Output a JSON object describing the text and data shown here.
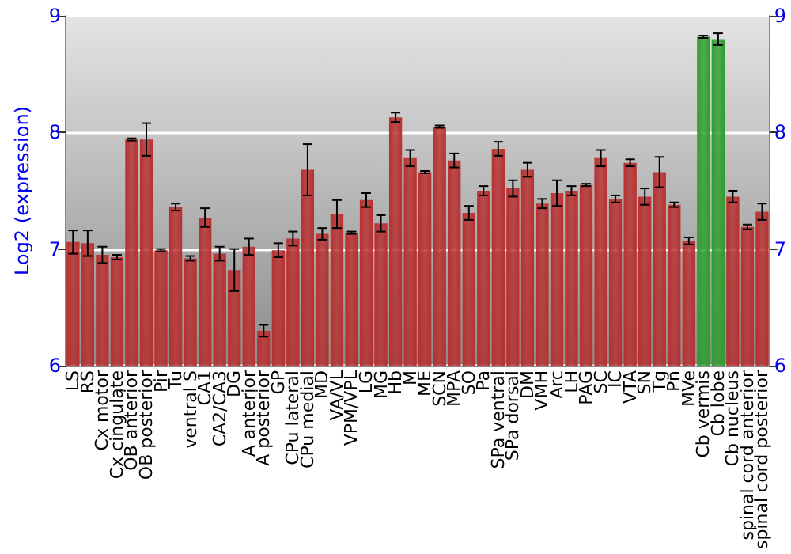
{
  "chart_data": {
    "type": "bar",
    "ylabel": "Log2 (expression)",
    "categories": [
      "LS",
      "RS",
      "Cx motor",
      "Cx cingulate",
      "OB anterior",
      "OB posterior",
      "Pir",
      "Tu",
      "ventral S",
      "CA1",
      "CA2/CA3",
      "DG",
      "A anterior",
      "A posterior",
      "GP",
      "CPu lateral",
      "CPu medial",
      "MD",
      "VA/VL",
      "VPM/VPL",
      "LG",
      "MG",
      "Hb",
      "M",
      "ME",
      "SCN",
      "MPA",
      "SO",
      "Pa",
      "SPa ventral",
      "SPa dorsal",
      "DM",
      "VMH",
      "Arc",
      "LH",
      "PAG",
      "SC",
      "IC",
      "VTA",
      "SN",
      "Tg",
      "Pn",
      "MVe",
      "Cb vermis",
      "Cb lobe",
      "Cb nucleus",
      "spinal cord anterior",
      "spinal cord posterior"
    ],
    "values": [
      7.06,
      7.05,
      6.95,
      6.93,
      7.94,
      7.94,
      6.99,
      7.36,
      6.92,
      7.27,
      6.96,
      6.82,
      7.02,
      6.3,
      6.99,
      7.09,
      7.68,
      7.13,
      7.3,
      7.14,
      7.42,
      7.22,
      8.13,
      7.78,
      7.66,
      8.05,
      7.76,
      7.31,
      7.5,
      7.86,
      7.52,
      7.68,
      7.39,
      7.48,
      7.5,
      7.55,
      7.78,
      7.43,
      7.74,
      7.45,
      7.66,
      7.38,
      7.07,
      8.82,
      8.8,
      7.45,
      7.19,
      7.32
    ],
    "errors": [
      0.1,
      0.11,
      0.07,
      0.02,
      0.01,
      0.14,
      0.01,
      0.03,
      0.02,
      0.08,
      0.06,
      0.18,
      0.07,
      0.05,
      0.06,
      0.06,
      0.22,
      0.05,
      0.12,
      0.01,
      0.06,
      0.07,
      0.04,
      0.07,
      0.01,
      0.01,
      0.06,
      0.06,
      0.04,
      0.06,
      0.07,
      0.06,
      0.04,
      0.11,
      0.04,
      0.01,
      0.07,
      0.03,
      0.03,
      0.07,
      0.13,
      0.02,
      0.03,
      0.01,
      0.05,
      0.05,
      0.02,
      0.07
    ],
    "colors": [
      "#b83030",
      "#b83030",
      "#b83030",
      "#b83030",
      "#b83030",
      "#b83030",
      "#b83030",
      "#b83030",
      "#b83030",
      "#b83030",
      "#b83030",
      "#b83030",
      "#b83030",
      "#b83030",
      "#b83030",
      "#b83030",
      "#b83030",
      "#b83030",
      "#b83030",
      "#b83030",
      "#b83030",
      "#b83030",
      "#b83030",
      "#b83030",
      "#b83030",
      "#b83030",
      "#b83030",
      "#b83030",
      "#b83030",
      "#b83030",
      "#b83030",
      "#b83030",
      "#b83030",
      "#b83030",
      "#b83030",
      "#b83030",
      "#b83030",
      "#b83030",
      "#b83030",
      "#b83030",
      "#b83030",
      "#b83030",
      "#b83030",
      "#2f9e2f",
      "#2f9e2f",
      "#b83030",
      "#b83030",
      "#b83030"
    ],
    "ylim": [
      6,
      9
    ],
    "yticks": [
      6,
      7,
      8,
      9
    ],
    "y2lim": [
      6,
      9
    ],
    "y2ticks": [
      6,
      7,
      8,
      9
    ],
    "grid": "y"
  }
}
